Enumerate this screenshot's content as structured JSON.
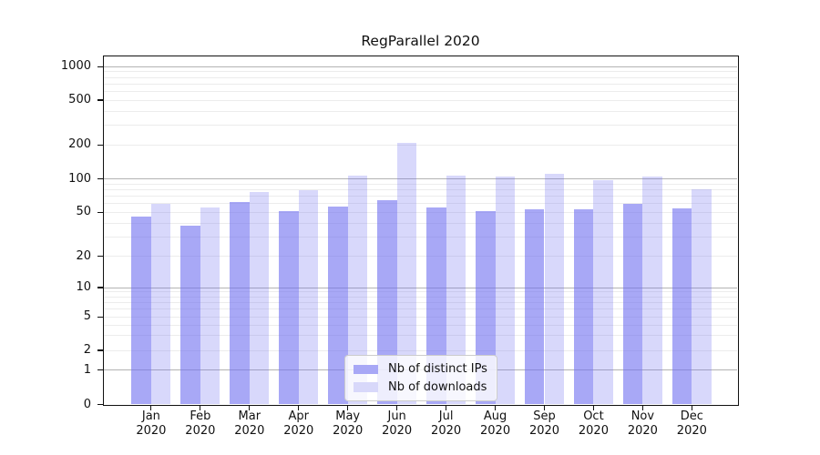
{
  "title": "RegParallel 2020",
  "chart_data": {
    "type": "bar",
    "months": [
      "Jan",
      "Feb",
      "Mar",
      "Apr",
      "May",
      "Jun",
      "Jul",
      "Aug",
      "Sep",
      "Oct",
      "Nov",
      "Dec"
    ],
    "year": "2020",
    "series": [
      {
        "name": "Nb of distinct IPs",
        "swatch_color": "#a8a8f6",
        "fill_rgba": "rgba(110,110,240,0.6)",
        "values": [
          46,
          38,
          62,
          51,
          56,
          64,
          55,
          51,
          53,
          53,
          60,
          54
        ]
      },
      {
        "name": "Nb of downloads",
        "swatch_color": "#d8d8fa",
        "fill_rgba": "rgba(110,110,240,0.27)",
        "values": [
          60,
          55,
          76,
          79,
          108,
          210,
          107,
          105,
          112,
          98,
          105,
          81
        ]
      }
    ],
    "y_ticks": [
      0,
      1,
      2,
      5,
      10,
      20,
      50,
      100,
      200,
      500,
      1000
    ],
    "y_scale": "symlog",
    "ylim": [
      0,
      1300
    ],
    "grid": "horizontal major+minor",
    "legend_position": "inside bottom-center",
    "colors": {
      "major_gridline": "#b3b3b3",
      "minor_gridline": "#ececec",
      "axis": "#111111",
      "background": "#ffffff"
    }
  }
}
